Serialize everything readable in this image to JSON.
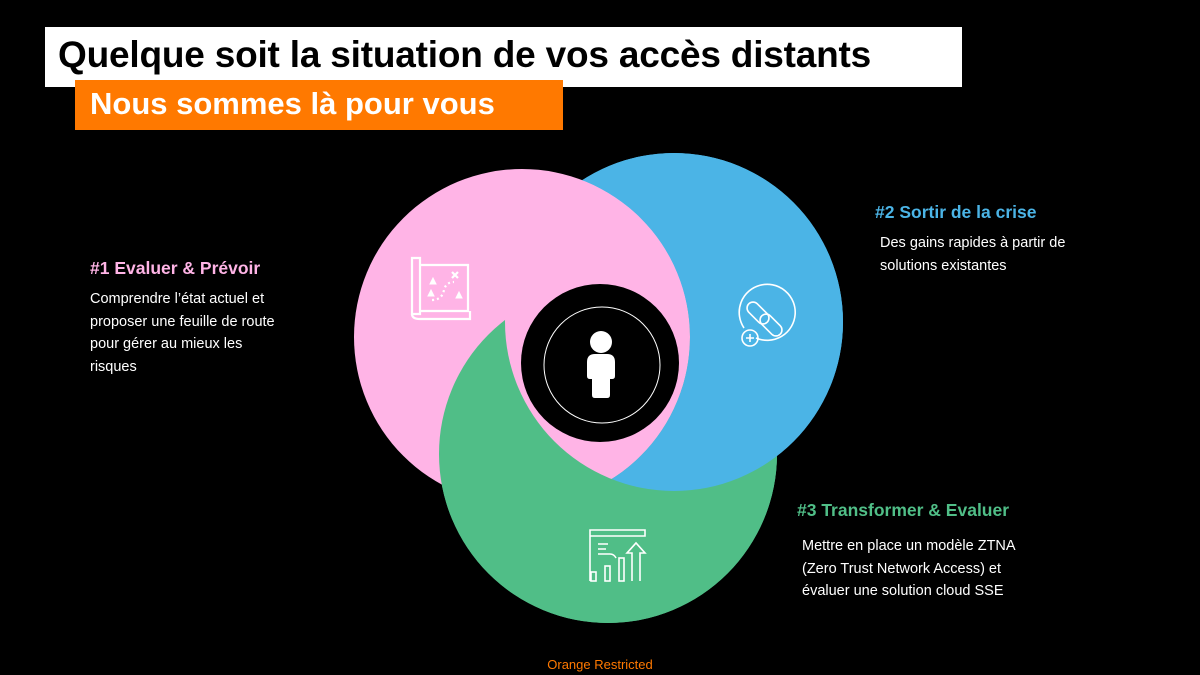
{
  "header": {
    "title": "Quelque soit la situation de vos accès distants",
    "subtitle": "Nous sommes là pour vous"
  },
  "colors": {
    "pink": "#ffb4e6",
    "blue": "#4bb4e6",
    "green": "#50be87",
    "orange": "#ff7900"
  },
  "steps": [
    {
      "title": "#1 Evaluer & Prévoir",
      "lines": [
        "Comprendre l’état actuel et",
        "proposer une feuille de route",
        "pour gérer au mieux les",
        "risques"
      ],
      "icon": "treasure-map-icon"
    },
    {
      "title": "#2 Sortir de la crise",
      "lines": [
        "Des gains rapides à partir de",
        "solutions existantes"
      ],
      "icon": "chain-link-plus-icon"
    },
    {
      "title": "#3 Transformer & Evaluer",
      "lines": [
        "Mettre en place un modèle ZTNA",
        "(Zero Trust Network Access) et",
        "évaluer une solution cloud SSE"
      ],
      "icon": "growth-chart-icon"
    }
  ],
  "center_icon": "user-icon",
  "footer": {
    "label": "Orange Restricted"
  }
}
